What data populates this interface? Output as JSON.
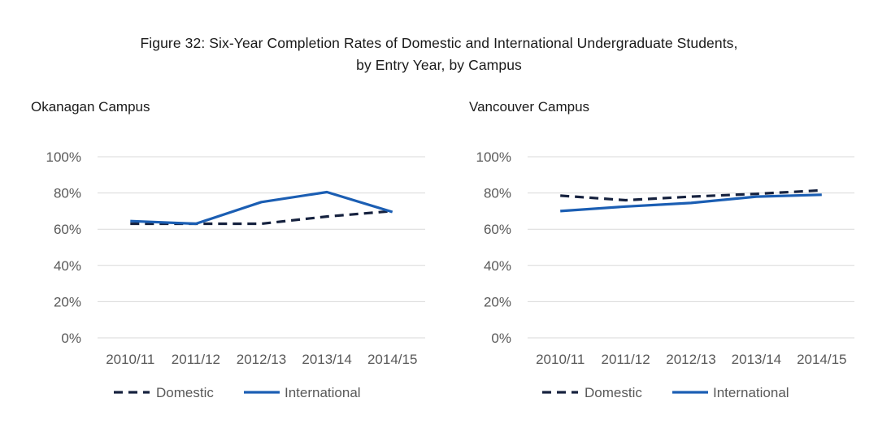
{
  "figure_title_line1": "Figure 32: Six-Year Completion Rates of Domestic and International Undergraduate Students,",
  "figure_title_line2": "by Entry Year, by Campus",
  "colors": {
    "domestic": "#16223f",
    "international": "#1b5eb3",
    "gridline": "#d9d9d9",
    "text": "#595959"
  },
  "chart_data": [
    {
      "type": "line",
      "title": "Okanagan Campus",
      "categories": [
        "2010/11",
        "2011/12",
        "2012/13",
        "2013/14",
        "2014/15"
      ],
      "yticks": [
        "0%",
        "20%",
        "40%",
        "60%",
        "80%",
        "100%"
      ],
      "ylim": [
        0,
        100
      ],
      "grid": true,
      "legend_position": "bottom",
      "series": [
        {
          "name": "Domestic",
          "style": "dashed",
          "values": [
            63,
            63,
            63,
            67,
            70
          ]
        },
        {
          "name": "International",
          "style": "solid",
          "values": [
            64.5,
            63,
            75,
            80.5,
            69.5
          ]
        }
      ]
    },
    {
      "type": "line",
      "title": "Vancouver Campus",
      "categories": [
        "2010/11",
        "2011/12",
        "2012/13",
        "2013/14",
        "2014/15"
      ],
      "yticks": [
        "0%",
        "20%",
        "40%",
        "60%",
        "80%",
        "100%"
      ],
      "ylim": [
        0,
        100
      ],
      "grid": true,
      "legend_position": "bottom",
      "series": [
        {
          "name": "Domestic",
          "style": "dashed",
          "values": [
            78.5,
            76,
            78,
            79.5,
            81.5
          ]
        },
        {
          "name": "International",
          "style": "solid",
          "values": [
            70,
            72.5,
            74.5,
            78,
            79
          ]
        }
      ]
    }
  ]
}
